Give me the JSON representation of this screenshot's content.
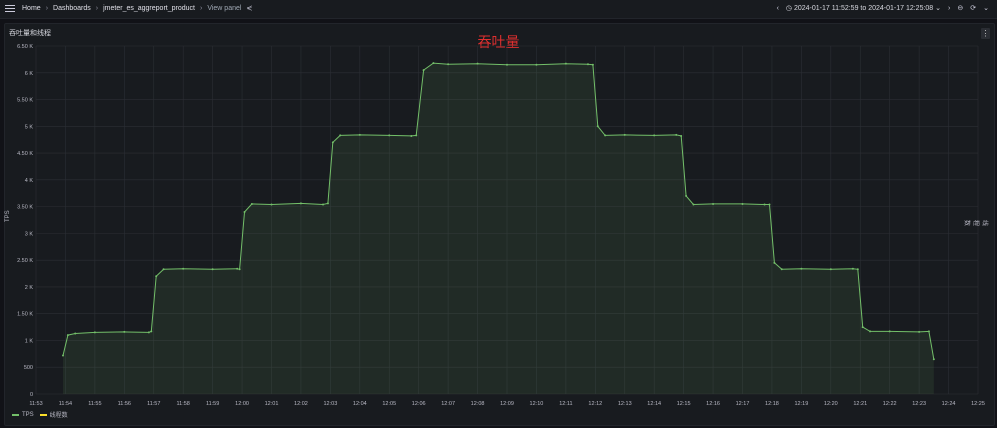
{
  "topbar": {
    "breadcrumbs": [
      "Home",
      "Dashboards",
      "jmeter_es_aggreport_product",
      "View panel"
    ],
    "time_range": "2024-01-17 11:52:59 to 2024-01-17 12:25:08"
  },
  "panel": {
    "title": "吞吐量和线程",
    "chart_title": "吞吐量",
    "left_axis_label": "TPS",
    "right_axis_label": "线程数"
  },
  "legend": [
    {
      "name": "TPS",
      "color": "#73bf69"
    },
    {
      "name": "线程数",
      "color": "#fade2a"
    }
  ],
  "chart_data": {
    "type": "line",
    "title": "吞吐量",
    "ylabel": "TPS",
    "ylim": [
      0,
      6500
    ],
    "yticks": [
      "0",
      "500",
      "1 K",
      "1.50 K",
      "2 K",
      "2.50 K",
      "3 K",
      "3.50 K",
      "4 K",
      "4.50 K",
      "5 K",
      "5.50 K",
      "6 K",
      "6.50 K"
    ],
    "xticks": [
      "11:53",
      "11:54",
      "11:55",
      "11:56",
      "11:57",
      "11:58",
      "11:59",
      "12:00",
      "12:01",
      "12:02",
      "12:03",
      "12:04",
      "12:05",
      "12:06",
      "12:07",
      "12:08",
      "12:09",
      "12:10",
      "12:11",
      "12:12",
      "12:13",
      "12:14",
      "12:15",
      "12:16",
      "12:17",
      "12:18",
      "12:19",
      "12:20",
      "12:21",
      "12:22",
      "12:23",
      "12:24",
      "12:25"
    ],
    "series": [
      {
        "name": "TPS",
        "color": "#73bf69",
        "x": [
          "11:53:55",
          "11:54:05",
          "11:54:20",
          "11:55:00",
          "11:56:00",
          "11:56:50",
          "11:56:55",
          "11:57:05",
          "11:57:20",
          "11:58:00",
          "11:59:00",
          "11:59:50",
          "11:59:55",
          "12:00:05",
          "12:00:20",
          "12:01:00",
          "12:02:00",
          "12:02:45",
          "12:02:55",
          "12:03:05",
          "12:03:20",
          "12:04:00",
          "12:05:00",
          "12:05:45",
          "12:05:55",
          "12:06:10",
          "12:06:30",
          "12:07:00",
          "12:08:00",
          "12:09:00",
          "12:10:00",
          "12:11:00",
          "12:11:45",
          "12:11:55",
          "12:12:05",
          "12:12:20",
          "12:13:00",
          "12:14:00",
          "12:14:45",
          "12:14:55",
          "12:15:05",
          "12:15:20",
          "12:16:00",
          "12:17:00",
          "12:17:45",
          "12:17:55",
          "12:18:05",
          "12:18:20",
          "12:19:00",
          "12:20:00",
          "12:20:45",
          "12:20:55",
          "12:21:05",
          "12:21:20",
          "12:22:00",
          "12:23:00",
          "12:23:20",
          "12:23:30"
        ],
        "values": [
          720,
          1100,
          1130,
          1150,
          1160,
          1150,
          1170,
          2200,
          2330,
          2340,
          2330,
          2340,
          2330,
          3400,
          3550,
          3540,
          3560,
          3540,
          3560,
          4700,
          4830,
          4840,
          4830,
          4820,
          4830,
          6050,
          6180,
          6160,
          6170,
          6150,
          6150,
          6170,
          6160,
          6150,
          5000,
          4830,
          4840,
          4830,
          4840,
          4820,
          3700,
          3540,
          3550,
          3550,
          3540,
          3540,
          2450,
          2330,
          2340,
          2330,
          2340,
          2330,
          1250,
          1170,
          1170,
          1160,
          1170,
          650
        ]
      }
    ]
  }
}
